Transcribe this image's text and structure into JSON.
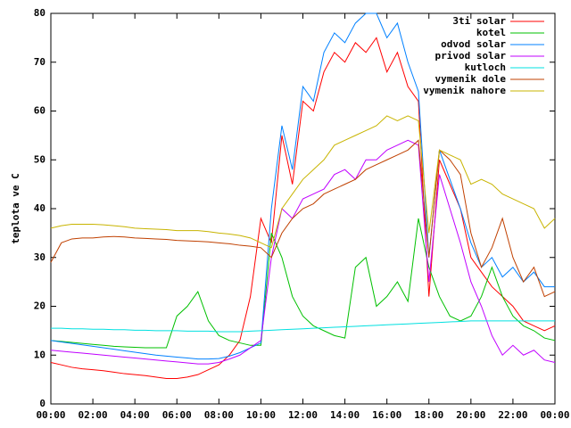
{
  "chart_data": {
    "type": "line",
    "y_label": "teplota ve C",
    "x": [
      0,
      0.5,
      1,
      1.5,
      2,
      2.5,
      3,
      3.5,
      4,
      4.5,
      5,
      5.5,
      6,
      6.5,
      7,
      7.5,
      8,
      8.5,
      9,
      9.5,
      10,
      10.5,
      11,
      11.5,
      12,
      12.5,
      13,
      13.5,
      14,
      14.5,
      15,
      15.5,
      16,
      16.5,
      17,
      17.5,
      18,
      18.5,
      19,
      19.5,
      20,
      20.5,
      21,
      21.5,
      22,
      22.5,
      23,
      23.5,
      24
    ],
    "xlim": [
      0,
      24
    ],
    "xticks": [
      {
        "value": 0,
        "label": "00:00"
      },
      {
        "value": 2,
        "label": "02:00"
      },
      {
        "value": 4,
        "label": "04:00"
      },
      {
        "value": 6,
        "label": "06:00"
      },
      {
        "value": 8,
        "label": "08:00"
      },
      {
        "value": 10,
        "label": "10:00"
      },
      {
        "value": 12,
        "label": "12:00"
      },
      {
        "value": 14,
        "label": "14:00"
      },
      {
        "value": 16,
        "label": "16:00"
      },
      {
        "value": 18,
        "label": "18:00"
      },
      {
        "value": 20,
        "label": "20:00"
      },
      {
        "value": 22,
        "label": "22:00"
      },
      {
        "value": 24,
        "label": "00:00"
      }
    ],
    "ylim": [
      0,
      80
    ],
    "yticks": [
      0,
      10,
      20,
      30,
      40,
      50,
      60,
      70,
      80
    ],
    "grid": false,
    "legend": "top-right",
    "series": [
      {
        "name": "3ti solar",
        "color": "#ff0000",
        "values": [
          8.5,
          8,
          7.5,
          7.2,
          7,
          6.8,
          6.5,
          6.2,
          6,
          5.8,
          5.5,
          5.2,
          5.2,
          5.5,
          6,
          7,
          8,
          10,
          13,
          22,
          38,
          33,
          55,
          45,
          62,
          60,
          68,
          72,
          70,
          74,
          72,
          75,
          68,
          72,
          65,
          62,
          22,
          50,
          45,
          40,
          30,
          27,
          24,
          22,
          20,
          17,
          16,
          15,
          16
        ]
      },
      {
        "name": "kotel",
        "color": "#00c000",
        "values": [
          13,
          12.8,
          12.6,
          12.4,
          12.2,
          12,
          11.8,
          11.7,
          11.6,
          11.5,
          11.5,
          11.5,
          18,
          20,
          23,
          17,
          14,
          13,
          12.5,
          12,
          12,
          35,
          30,
          22,
          18,
          16,
          15,
          14,
          13.5,
          28,
          30,
          20,
          22,
          25,
          21,
          38,
          28,
          22,
          18,
          17,
          18,
          22,
          28,
          22,
          18,
          16,
          15,
          13.5,
          13
        ]
      },
      {
        "name": "odvod solar",
        "color": "#0080ff",
        "values": [
          13,
          12.7,
          12.4,
          12.1,
          11.8,
          11.5,
          11.2,
          10.9,
          10.6,
          10.3,
          10,
          9.8,
          9.6,
          9.4,
          9.2,
          9.2,
          9.3,
          9.8,
          10.5,
          11.5,
          12.5,
          40,
          57,
          48,
          65,
          62,
          72,
          76,
          74,
          78,
          80,
          80,
          75,
          78,
          70,
          64,
          30,
          52,
          46,
          40,
          33,
          28,
          30,
          26,
          28,
          25,
          27,
          24,
          24
        ]
      },
      {
        "name": "privod solar",
        "color": "#c000ff",
        "values": [
          11,
          10.8,
          10.6,
          10.4,
          10.2,
          10,
          9.8,
          9.6,
          9.4,
          9.2,
          9,
          8.8,
          8.6,
          8.4,
          8.2,
          8.2,
          8.5,
          9.2,
          10,
          11.5,
          13,
          30,
          40,
          38,
          42,
          43,
          44,
          47,
          48,
          46,
          50,
          50,
          52,
          53,
          54,
          53,
          25,
          47,
          40,
          33,
          25,
          20,
          14,
          10,
          12,
          10,
          11,
          9,
          8.5
        ]
      },
      {
        "name": "kutloch",
        "color": "#00e0e0",
        "values": [
          15.5,
          15.5,
          15.4,
          15.4,
          15.3,
          15.3,
          15.2,
          15.2,
          15.1,
          15.1,
          15,
          15,
          15,
          14.9,
          14.9,
          14.9,
          14.8,
          14.8,
          14.8,
          14.9,
          15,
          15.1,
          15.2,
          15.3,
          15.4,
          15.5,
          15.6,
          15.7,
          15.8,
          15.9,
          16,
          16.1,
          16.2,
          16.3,
          16.4,
          16.5,
          16.6,
          16.7,
          16.8,
          16.9,
          17,
          17,
          17,
          17,
          17,
          17,
          17,
          17,
          17
        ]
      },
      {
        "name": "vymenik dole",
        "color": "#c04000",
        "values": [
          29,
          33,
          33.8,
          34,
          34,
          34.2,
          34.3,
          34.2,
          34,
          33.9,
          33.8,
          33.7,
          33.5,
          33.4,
          33.3,
          33.2,
          33,
          32.8,
          32.5,
          32.3,
          32,
          30,
          35,
          38,
          40,
          41,
          43,
          44,
          45,
          46,
          48,
          49,
          50,
          51,
          52,
          54,
          30,
          52,
          50,
          47,
          35,
          28,
          32,
          38,
          30,
          25,
          28,
          22,
          23
        ]
      },
      {
        "name": "vymenik nahore",
        "color": "#c8b400",
        "values": [
          36,
          36.5,
          36.8,
          36.8,
          36.8,
          36.7,
          36.5,
          36.3,
          36,
          35.9,
          35.8,
          35.7,
          35.5,
          35.5,
          35.5,
          35.3,
          35,
          34.8,
          34.5,
          34,
          33,
          32,
          40,
          43,
          46,
          48,
          50,
          53,
          54,
          55,
          56,
          57,
          59,
          58,
          59,
          58,
          35,
          52,
          51,
          50,
          45,
          46,
          45,
          43,
          42,
          41,
          40,
          36,
          38
        ]
      }
    ]
  }
}
